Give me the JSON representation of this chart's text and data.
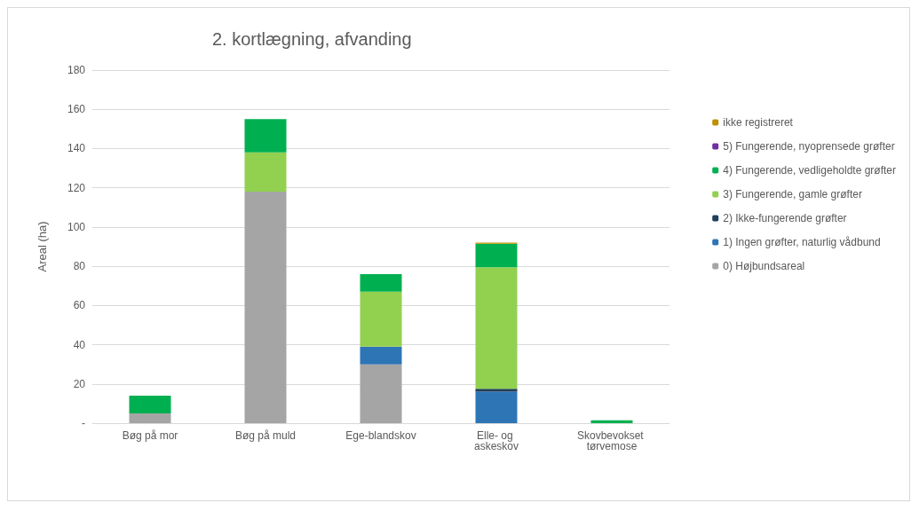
{
  "chart_data": {
    "type": "bar",
    "title": "2. kortlægning, afvanding",
    "ylabel": "Areal (ha)",
    "stacked": true,
    "categories": [
      "Bøg på mor",
      "Bøg på muld",
      "Ege-blandskov",
      "Elle- og askeskov",
      "Skovbevokset tørvemose"
    ],
    "series": [
      {
        "name": "0) Højbundsareal",
        "color": "#a5a5a5",
        "values": [
          5,
          118,
          30,
          null,
          null
        ]
      },
      {
        "name": "1) Ingen grøfter, naturlig vådbund",
        "color": "#2e75b6",
        "values": [
          null,
          null,
          9,
          16,
          null
        ]
      },
      {
        "name": "2) Ikke-fungerende grøfter",
        "color": "#1f3f5b",
        "values": [
          null,
          null,
          null,
          1.5,
          null
        ]
      },
      {
        "name": "3) Fungerende, gamle grøfter",
        "color": "#92d050",
        "values": [
          null,
          20,
          28,
          62,
          null
        ]
      },
      {
        "name": "4) Fungerende, vedligeholdte grøfter",
        "color": "#00b050",
        "values": [
          9,
          17,
          9,
          12,
          1.5
        ]
      },
      {
        "name": "5) Fungerende, nyoprensede grøfter",
        "color": "#7030a0",
        "values": [
          null,
          null,
          null,
          null,
          null
        ]
      },
      {
        "name": "ikke registreret",
        "color": "#bf9000",
        "values": [
          null,
          null,
          null,
          0.5,
          null
        ]
      }
    ],
    "ylim": [
      0,
      180
    ],
    "yticks": [
      {
        "value": 0,
        "label": "-"
      },
      20,
      40,
      60,
      80,
      100,
      120,
      140,
      160,
      180
    ],
    "grid": "y",
    "legend": "right"
  }
}
